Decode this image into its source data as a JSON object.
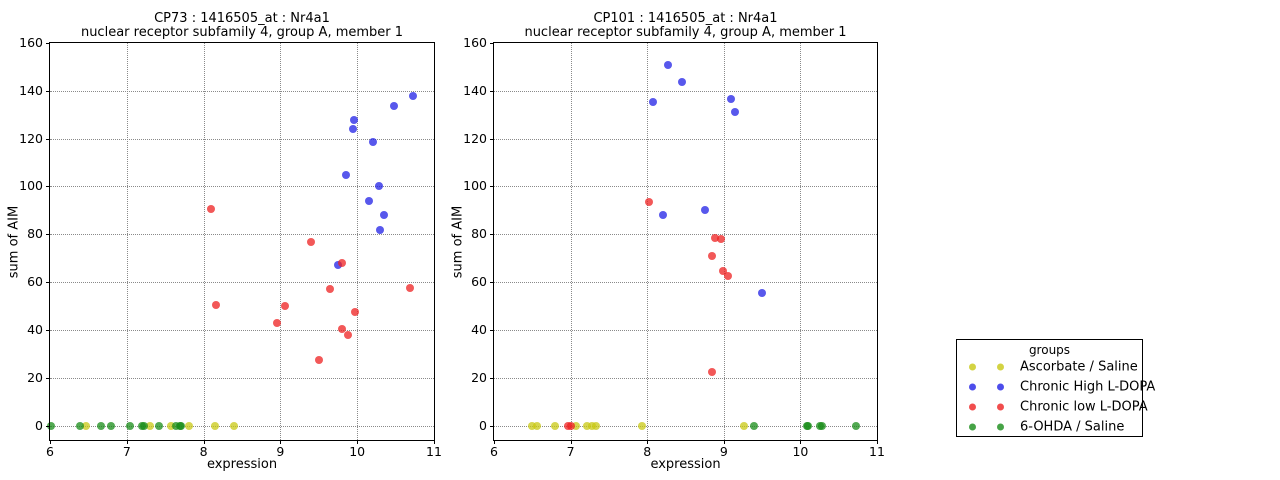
{
  "figure": {
    "background": "#ffffff",
    "text_color": "#000000",
    "legend": {
      "title": "groups",
      "position": "right-outside",
      "entries": [
        {
          "label": "Ascorbate / Saline",
          "color": "#c8c814"
        },
        {
          "label": "Chronic High L-DOPA",
          "color": "#2020e6"
        },
        {
          "label": "Chronic low L-DOPA",
          "color": "#ee2020"
        },
        {
          "label": "6-OHDA / Saline",
          "color": "#188c18"
        }
      ]
    }
  },
  "chart_data": [
    {
      "type": "scatter",
      "title_line1": "CP73 : 1416505_at : Nr4a1",
      "title_line2": "nuclear receptor subfamily 4, group A, member 1",
      "xlabel": "expression",
      "ylabel": "sum of AIM",
      "xlim": [
        6,
        11
      ],
      "ylim": [
        -6,
        160
      ],
      "xticks": [
        6,
        7,
        8,
        9,
        10,
        11
      ],
      "yticks": [
        0,
        20,
        40,
        60,
        80,
        100,
        120,
        140,
        160
      ],
      "grid": true,
      "series": [
        {
          "name": "Ascorbate / Saline",
          "color": "#c8c814",
          "points": [
            [
              6.47,
              0
            ],
            [
              7.3,
              0
            ],
            [
              7.58,
              0
            ],
            [
              7.81,
              0
            ],
            [
              8.15,
              0
            ],
            [
              8.4,
              0
            ]
          ]
        },
        {
          "name": "Chronic High L-DOPA",
          "color": "#2020e6",
          "points": [
            [
              9.75,
              67
            ],
            [
              9.85,
              105
            ],
            [
              9.95,
              124
            ],
            [
              9.96,
              128
            ],
            [
              10.15,
              94
            ],
            [
              10.21,
              118.5
            ],
            [
              10.28,
              100
            ],
            [
              10.3,
              82
            ],
            [
              10.35,
              88
            ],
            [
              10.48,
              133.5
            ],
            [
              10.73,
              138
            ]
          ]
        },
        {
          "name": "Chronic low L-DOPA",
          "color": "#ee2020",
          "points": [
            [
              8.09,
              90.5
            ],
            [
              8.16,
              50.5
            ],
            [
              8.95,
              43
            ],
            [
              9.06,
              50
            ],
            [
              9.4,
              77
            ],
            [
              9.5,
              27.5
            ],
            [
              9.65,
              57
            ],
            [
              9.8,
              68
            ],
            [
              9.8,
              40.5
            ],
            [
              9.88,
              38
            ],
            [
              9.97,
              47.5
            ],
            [
              10.69,
              57.5
            ]
          ]
        },
        {
          "name": "6-OHDA / Saline",
          "color": "#188c18",
          "points": [
            [
              6.01,
              0
            ],
            [
              6.39,
              0
            ],
            [
              6.66,
              0
            ],
            [
              6.79,
              0
            ],
            [
              7.04,
              0
            ],
            [
              7.2,
              0
            ],
            [
              7.23,
              0
            ],
            [
              7.42,
              0
            ],
            [
              7.64,
              0
            ],
            [
              7.69,
              0
            ],
            [
              7.71,
              0
            ]
          ]
        }
      ]
    },
    {
      "type": "scatter",
      "title_line1": "CP101 : 1416505_at : Nr4a1",
      "title_line2": "nuclear receptor subfamily 4, group A, member 1",
      "xlabel": "expression",
      "ylabel": "sum of AIM",
      "xlim": [
        6,
        11
      ],
      "ylim": [
        -6,
        160
      ],
      "xticks": [
        6,
        7,
        8,
        9,
        10,
        11
      ],
      "yticks": [
        0,
        20,
        40,
        60,
        80,
        100,
        120,
        140,
        160
      ],
      "grid": true,
      "series": [
        {
          "name": "Ascorbate / Saline",
          "color": "#c8c814",
          "points": [
            [
              6.49,
              0
            ],
            [
              6.56,
              0
            ],
            [
              6.8,
              0
            ],
            [
              7.07,
              0
            ],
            [
              7.21,
              0
            ],
            [
              7.28,
              0
            ],
            [
              7.33,
              0
            ],
            [
              7.93,
              0
            ],
            [
              9.27,
              0
            ]
          ]
        },
        {
          "name": "Chronic High L-DOPA",
          "color": "#2020e6",
          "points": [
            [
              8.07,
              135.5
            ],
            [
              8.2,
              88
            ],
            [
              8.27,
              151
            ],
            [
              8.45,
              143.5
            ],
            [
              8.75,
              90
            ],
            [
              9.09,
              136.5
            ],
            [
              9.15,
              131
            ],
            [
              9.5,
              55.5
            ]
          ]
        },
        {
          "name": "Chronic low L-DOPA",
          "color": "#ee2020",
          "points": [
            [
              6.97,
              0
            ],
            [
              7.0,
              0
            ],
            [
              8.02,
              93.5
            ],
            [
              8.84,
              22.5
            ],
            [
              8.85,
              71
            ],
            [
              8.89,
              78.5
            ],
            [
              8.96,
              78
            ],
            [
              8.99,
              64.5
            ],
            [
              9.05,
              62.5
            ]
          ]
        },
        {
          "name": "6-OHDA / Saline",
          "color": "#188c18",
          "points": [
            [
              9.4,
              0
            ],
            [
              10.08,
              0
            ],
            [
              10.1,
              0
            ],
            [
              10.26,
              0
            ],
            [
              10.28,
              0
            ],
            [
              10.73,
              0
            ]
          ]
        }
      ]
    }
  ]
}
